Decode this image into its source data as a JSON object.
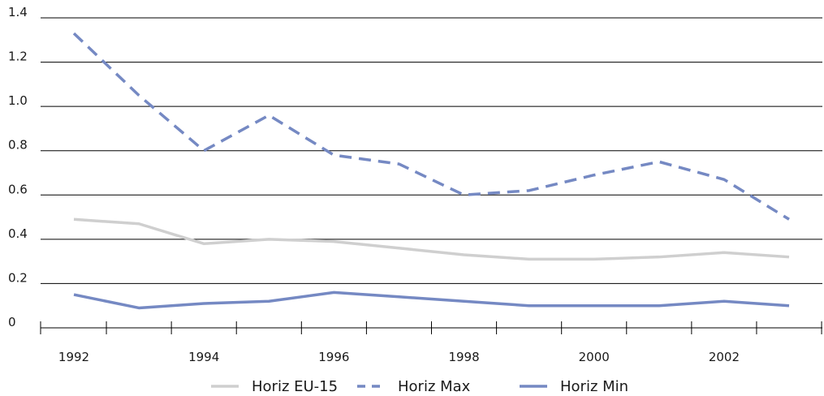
{
  "chart_data": {
    "type": "line",
    "title": "",
    "xlabel": "",
    "ylabel": "",
    "ylim": [
      0,
      1.4
    ],
    "xlim": [
      1992,
      2003
    ],
    "grid": true,
    "legend_position": "bottom",
    "x": [
      1992,
      1993,
      1994,
      1995,
      1996,
      1997,
      1998,
      1999,
      2000,
      2001,
      2002,
      2003
    ],
    "x_tick_labels": [
      "1992",
      "1994",
      "1996",
      "1998",
      "2000",
      "2002"
    ],
    "y_tick_labels": [
      "0",
      "0.2",
      "0.4",
      "0.6",
      "0.8",
      "1.0",
      "1.2",
      "1.4"
    ],
    "y_ticks": [
      0,
      0.2,
      0.4,
      0.6,
      0.8,
      1.0,
      1.2,
      1.4
    ],
    "series": [
      {
        "name": "Horiz EU-15",
        "color": "#cfcfcf",
        "style": "solid",
        "values": [
          0.49,
          0.47,
          0.38,
          0.4,
          0.39,
          0.36,
          0.33,
          0.31,
          0.31,
          0.32,
          0.34,
          0.32
        ]
      },
      {
        "name": "Horiz Max",
        "color": "#7589c3",
        "style": "dashed",
        "values": [
          1.33,
          1.05,
          0.8,
          0.96,
          0.78,
          0.74,
          0.6,
          0.62,
          0.69,
          0.75,
          0.67,
          0.49
        ]
      },
      {
        "name": "Horiz Min",
        "color": "#7589c3",
        "style": "solid",
        "values": [
          0.15,
          0.09,
          0.11,
          0.12,
          0.16,
          0.14,
          0.12,
          0.1,
          0.1,
          0.1,
          0.12,
          0.1
        ]
      }
    ]
  }
}
